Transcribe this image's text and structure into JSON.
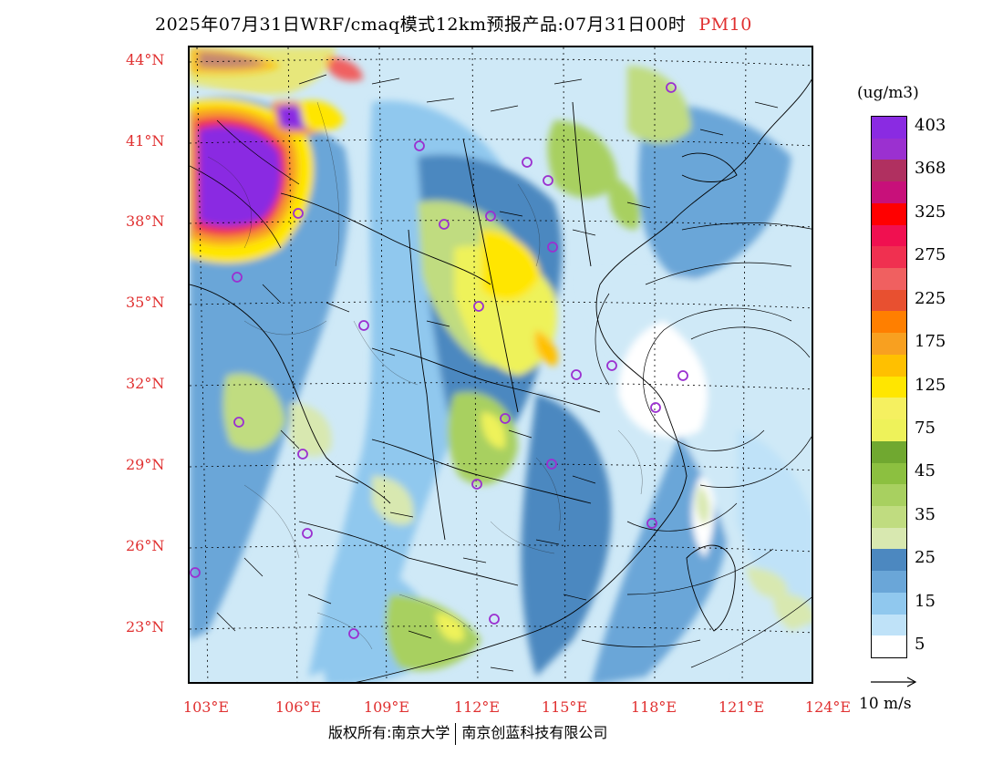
{
  "title": {
    "main": "2025年07月31日WRF/cmaq模式12km预报产品:07月31日00时",
    "variable": "PM10"
  },
  "axes": {
    "lat_labels": [
      "44°N",
      "41°N",
      "38°N",
      "35°N",
      "32°N",
      "29°N",
      "26°N",
      "23°N"
    ],
    "lon_labels": [
      "103°E",
      "106°E",
      "109°E",
      "112°E",
      "115°E",
      "118°E",
      "121°E",
      "124°E"
    ]
  },
  "legend": {
    "unit": "(ug/m3)",
    "bins": [
      {
        "label": "403",
        "color": "#8a2be2"
      },
      {
        "label": "",
        "color": "#9b30d0"
      },
      {
        "label": "368",
        "color": "#b03060"
      },
      {
        "label": "",
        "color": "#c8107a"
      },
      {
        "label": "325",
        "color": "#ff0000"
      },
      {
        "label": "",
        "color": "#f01050"
      },
      {
        "label": "275",
        "color": "#f03050"
      },
      {
        "label": "",
        "color": "#f06060"
      },
      {
        "label": "225",
        "color": "#e85030"
      },
      {
        "label": "",
        "color": "#ff7f00"
      },
      {
        "label": "175",
        "color": "#f8a020"
      },
      {
        "label": "",
        "color": "#ffc000"
      },
      {
        "label": "125",
        "color": "#ffe600"
      },
      {
        "label": "",
        "color": "#f5f060"
      },
      {
        "label": "75",
        "color": "#eef25a"
      },
      {
        "label": "",
        "color": "#70a830"
      },
      {
        "label": "45",
        "color": "#8cc040"
      },
      {
        "label": "",
        "color": "#a8d060"
      },
      {
        "label": "35",
        "color": "#c0dc80"
      },
      {
        "label": "",
        "color": "#d8e8b0"
      },
      {
        "label": "25",
        "color": "#4c88c0"
      },
      {
        "label": "",
        "color": "#6aa6d8"
      },
      {
        "label": "15",
        "color": "#90c8ee"
      },
      {
        "label": "",
        "color": "#bfe2f8"
      },
      {
        "label": "5",
        "color": "#ffffff"
      }
    ]
  },
  "wind_reference": {
    "label": "10 m/s"
  },
  "footer": {
    "left": "版权所有:南京大学",
    "right": "南京创蓝科技有限公司"
  },
  "colors": {
    "label_red": "#e03030",
    "station_marker": "#9b30d0"
  }
}
